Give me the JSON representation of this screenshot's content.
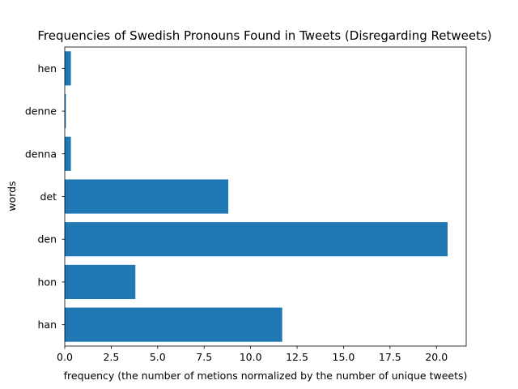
{
  "chart_data": {
    "type": "bar",
    "orientation": "horizontal",
    "title": "Frequencies of Swedish Pronouns Found in Tweets (Disregarding Retweets)",
    "xlabel": "frequency (the number of metions normalized by the number of unique tweets)",
    "ylabel": "words",
    "categories": [
      "han",
      "hon",
      "den",
      "det",
      "denna",
      "denne",
      "hen"
    ],
    "values": [
      11.7,
      3.8,
      20.6,
      8.8,
      0.33,
      0.06,
      0.33
    ],
    "xlim": [
      0,
      21.6
    ],
    "xticks": [
      0,
      2.5,
      5,
      7.5,
      10,
      12.5,
      15,
      17.5,
      20
    ],
    "xtick_labels": [
      "0.0",
      "2.5",
      "5.0",
      "7.5",
      "10.0",
      "12.5",
      "15.0",
      "17.5",
      "20.0"
    ],
    "bar_color": "#1f77b4",
    "grid": false,
    "legend": "none"
  }
}
